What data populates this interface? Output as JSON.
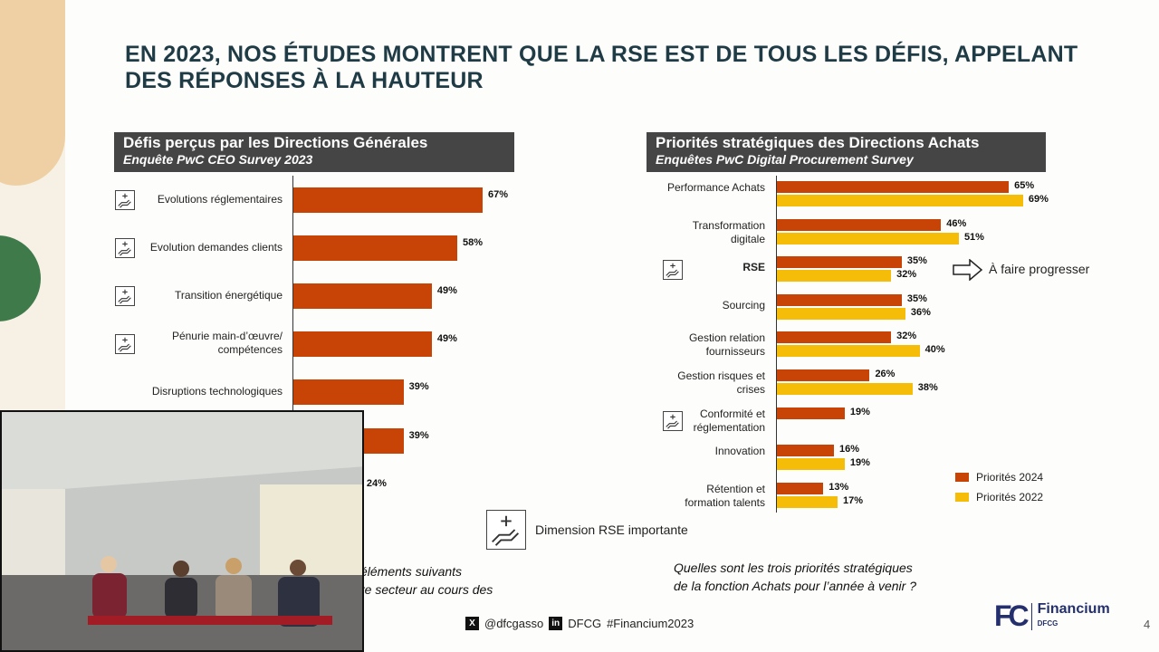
{
  "slide": {
    "title": "EN 2023, NOS ÉTUDES MONTRENT QUE LA RSE EST DE TOUS LES DÉFIS, APPELANT DES RÉPONSES À LA HAUTEUR",
    "legend_icon_label": "Dimension RSE importante",
    "arrow_label": "À faire progresser",
    "left_note": [
      "éléments suivants",
      "re secteur au cours des"
    ],
    "right_note": [
      "Quelles sont les trois priorités stratégiques",
      "de la fonction Achats pour l’année à venir ?"
    ],
    "footer": {
      "twitter": "@dfcgasso",
      "linkedin": "DFCG",
      "hashtag": "#Financium2023"
    },
    "logo": {
      "mark": "FC",
      "name": "Financium",
      "sub": "DFCG"
    },
    "page_number": "4",
    "icons": {
      "rse": "hand-plus-icon",
      "arrow": "arrow-right-icon"
    }
  },
  "chart_data": [
    {
      "type": "bar",
      "orientation": "horizontal",
      "title": "Défis perçus par les Directions Générales",
      "subtitle": "Enquête PwC CEO Survey 2023",
      "categories": [
        "Evolutions réglementaires",
        "Evolution demandes clients",
        "Transition énergétique",
        "Pénurie main-d’œuvre/ compétences",
        "Disruptions technologiques",
        "",
        ""
      ],
      "values": [
        67,
        58,
        49,
        49,
        39,
        39,
        24
      ],
      "data_labels": [
        "67%",
        "58%",
        "49%",
        "49%",
        "39%",
        "39%",
        "24%"
      ],
      "rse_flag": [
        true,
        true,
        true,
        true,
        false,
        false,
        false
      ],
      "color": "#c84306"
    },
    {
      "type": "bar",
      "orientation": "horizontal",
      "title": "Priorités stratégiques des Directions Achats",
      "subtitle": "Enquêtes PwC Digital Procurement Survey",
      "categories": [
        "Performance Achats",
        "Transformation digitale",
        "RSE",
        "Sourcing",
        "Gestion relation fournisseurs",
        "Gestion risques et crises",
        "Conformité et réglementation",
        "Innovation",
        "Rétention et formation talents"
      ],
      "rse_flag": [
        false,
        false,
        true,
        false,
        false,
        false,
        true,
        false,
        false
      ],
      "legend_position": "bottom-right",
      "series": [
        {
          "name": "Priorités 2024",
          "color": "#c84306",
          "values": [
            65,
            46,
            35,
            35,
            32,
            26,
            19,
            16,
            13
          ]
        },
        {
          "name": "Priorités 2022",
          "color": "#f5bd07",
          "values": [
            69,
            51,
            32,
            36,
            40,
            38,
            null,
            19,
            17
          ]
        }
      ]
    }
  ]
}
